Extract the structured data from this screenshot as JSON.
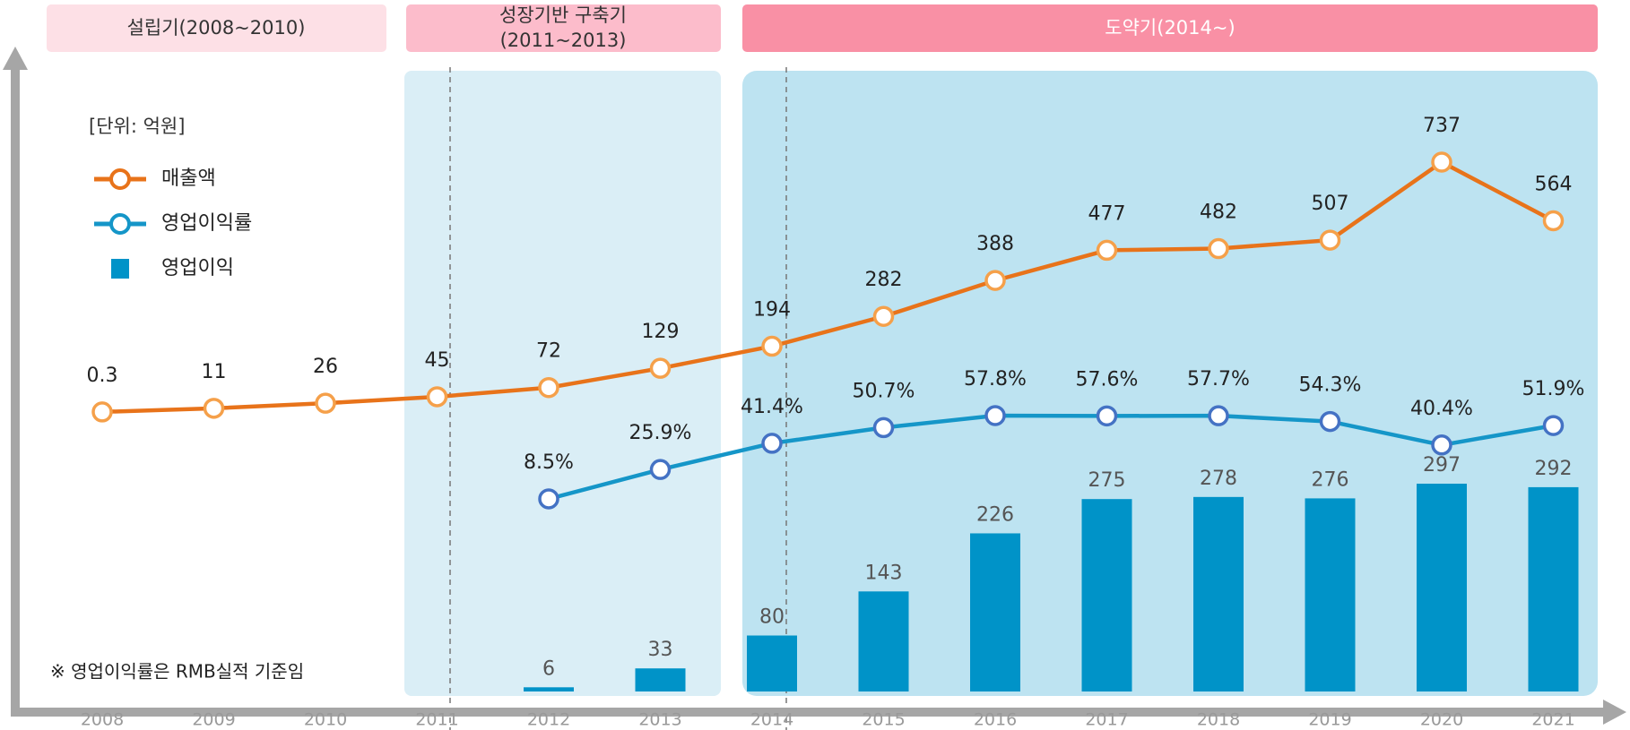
{
  "chart_data": {
    "type": "combo",
    "phases": [
      "설립기(2008~2010)",
      "성장기반 구축기",
      "(2011~2013)",
      "도약기(2014~)"
    ],
    "unit": "[단위: 억원]",
    "note": "※ 영업이익률은 RMB실적 기준임",
    "categories": [
      "2008",
      "2009",
      "2010",
      "2011",
      "2012",
      "2013",
      "2014",
      "2015",
      "2016",
      "2017",
      "2018",
      "2019",
      "2020",
      "2021"
    ],
    "series": [
      {
        "name": "매출액",
        "type": "line",
        "color": "#e8731a",
        "marker_color": "#f5a04a",
        "values": [
          0.3,
          11,
          26,
          45,
          72,
          129,
          194,
          282,
          388,
          477,
          482,
          507,
          737,
          564
        ]
      },
      {
        "name": "영업이익률",
        "type": "line",
        "color": "#1596c8",
        "marker_color": "#4472c4",
        "values": [
          null,
          null,
          null,
          null,
          8.5,
          25.9,
          41.4,
          50.7,
          57.8,
          57.6,
          57.7,
          54.3,
          40.4,
          51.9
        ],
        "value_labels": [
          null,
          null,
          null,
          null,
          "8.5%",
          "25.9%",
          "41.4%",
          "50.7%",
          "57.8%",
          "57.6%",
          "57.7%",
          "54.3%",
          "40.4%",
          "51.9%"
        ]
      },
      {
        "name": "영업이익",
        "type": "bar",
        "color": "#0093c8",
        "values": [
          null,
          null,
          null,
          null,
          6,
          33,
          80,
          143,
          226,
          275,
          278,
          276,
          297,
          292
        ]
      }
    ]
  }
}
